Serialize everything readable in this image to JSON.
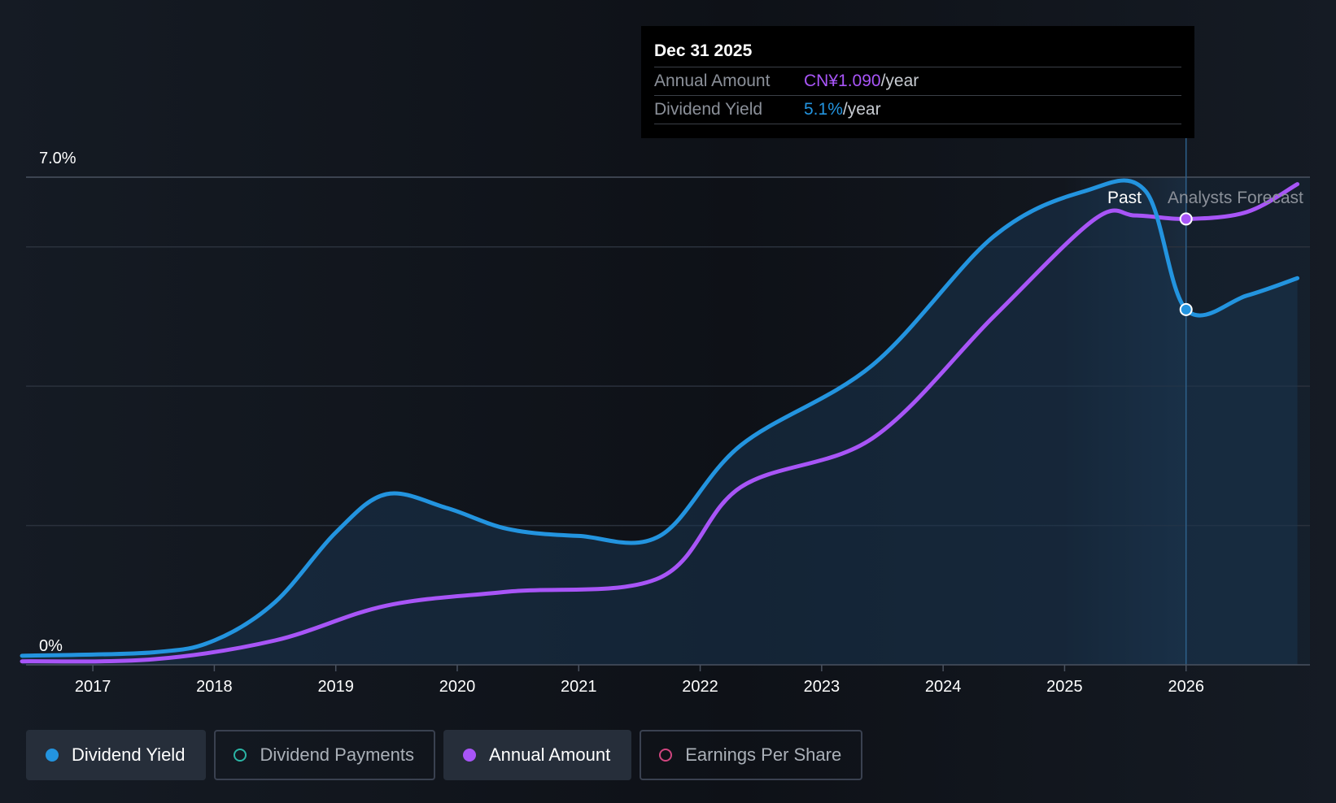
{
  "chart_data": {
    "type": "line",
    "y_labels": {
      "top": "7.0%",
      "bottom": "0%"
    },
    "ylim": [
      0,
      7.0
    ],
    "xlim": [
      "2016-06-01",
      "2026-12-31"
    ],
    "x_tick_labels": [
      "2017",
      "2018",
      "2019",
      "2020",
      "2021",
      "2022",
      "2023",
      "2024",
      "2025",
      "2026"
    ],
    "region_labels": {
      "past": "Past",
      "forecast": "Analysts Forecast"
    },
    "series": [
      {
        "name": "Dividend Yield",
        "color": "#2394df",
        "unit": "%",
        "points": [
          [
            "2016-06",
            0.13
          ],
          [
            "2017-07",
            0.18
          ],
          [
            "2018-01",
            0.35
          ],
          [
            "2018-07",
            0.9
          ],
          [
            "2019-01",
            1.9
          ],
          [
            "2019-06",
            2.45
          ],
          [
            "2019-12",
            2.25
          ],
          [
            "2020-06",
            1.95
          ],
          [
            "2021-01",
            1.85
          ],
          [
            "2021-09",
            1.85
          ],
          [
            "2022-05",
            3.15
          ],
          [
            "2023-06",
            4.3
          ],
          [
            "2024-06",
            6.15
          ],
          [
            "2025-03",
            6.8
          ],
          [
            "2025-09",
            6.8
          ],
          [
            "2026-01",
            5.1
          ],
          [
            "2026-07",
            5.3
          ],
          [
            "2026-12",
            5.55
          ]
        ]
      },
      {
        "name": "Annual Amount",
        "color": "#a855f7",
        "unit": "CN¥",
        "points": [
          [
            "2016-06",
            0.05
          ],
          [
            "2017-07",
            0.08
          ],
          [
            "2018-07",
            0.35
          ],
          [
            "2019-06",
            0.85
          ],
          [
            "2020-06",
            1.05
          ],
          [
            "2021-09",
            1.25
          ],
          [
            "2022-05",
            2.55
          ],
          [
            "2023-06",
            3.25
          ],
          [
            "2024-06",
            5.0
          ],
          [
            "2025-04",
            6.4
          ],
          [
            "2025-08",
            6.45
          ],
          [
            "2026-01",
            6.4
          ],
          [
            "2026-07",
            6.5
          ],
          [
            "2026-12",
            6.9
          ]
        ]
      }
    ],
    "tooltip": {
      "date": "Dec 31 2025",
      "rows": [
        {
          "label": "Annual Amount",
          "value": "CN¥1.090",
          "unit": "/year"
        },
        {
          "label": "Dividend Yield",
          "value": "5.1%",
          "unit": "/year"
        }
      ]
    }
  },
  "legend": [
    {
      "label": "Dividend Yield",
      "color": "#2394df",
      "active": true,
      "filled": true
    },
    {
      "label": "Dividend Payments",
      "color": "#2bb5a5",
      "active": false,
      "filled": false
    },
    {
      "label": "Annual Amount",
      "color": "#a855f7",
      "active": true,
      "filled": true
    },
    {
      "label": "Earnings Per Share",
      "color": "#d0457f",
      "active": false,
      "filled": false
    }
  ]
}
